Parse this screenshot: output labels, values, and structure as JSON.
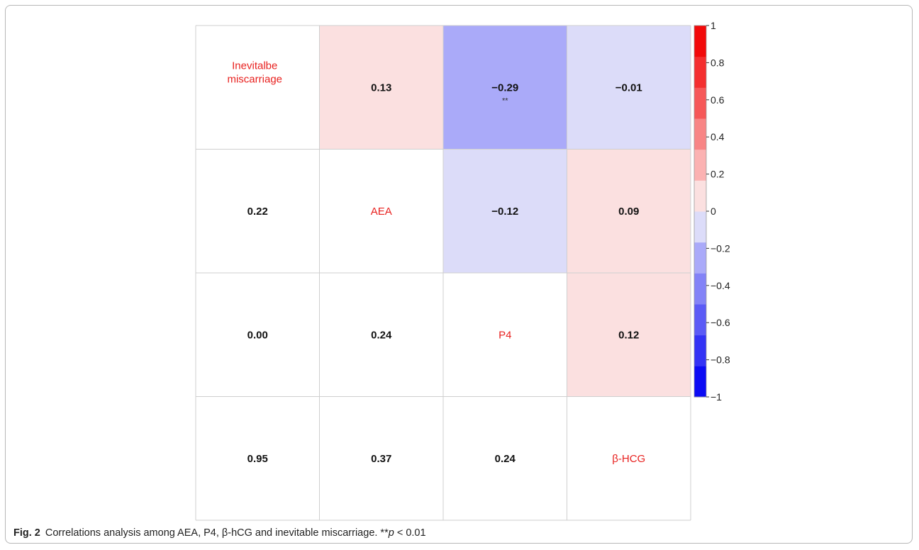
{
  "chart_data": {
    "type": "heatmap",
    "variables": [
      "Inevitalbe miscarriage",
      "AEA",
      "P4",
      "β-HCG"
    ],
    "upper_colored_r": [
      {
        "row": 0,
        "col": 1,
        "value": 0.13,
        "label": "0.13",
        "sig": ""
      },
      {
        "row": 0,
        "col": 2,
        "value": -0.29,
        "label": "−0.29",
        "sig": "**"
      },
      {
        "row": 0,
        "col": 3,
        "value": -0.01,
        "label": "−0.01",
        "sig": ""
      },
      {
        "row": 1,
        "col": 2,
        "value": -0.12,
        "label": "−0.12",
        "sig": ""
      },
      {
        "row": 1,
        "col": 3,
        "value": 0.09,
        "label": "0.09",
        "sig": ""
      },
      {
        "row": 2,
        "col": 3,
        "value": 0.12,
        "label": "0.12",
        "sig": ""
      }
    ],
    "lower_p_values": [
      {
        "row": 1,
        "col": 0,
        "label": "0.22"
      },
      {
        "row": 2,
        "col": 0,
        "label": "0.00"
      },
      {
        "row": 2,
        "col": 1,
        "label": "0.24"
      },
      {
        "row": 3,
        "col": 0,
        "label": "0.95"
      },
      {
        "row": 3,
        "col": 1,
        "label": "0.37"
      },
      {
        "row": 3,
        "col": 2,
        "label": "0.24"
      }
    ],
    "colorbar": {
      "range": [
        -1,
        1
      ],
      "ticks": [
        "1",
        "0.8",
        "0.6",
        "0.4",
        "0.2",
        "0",
        "−0.2",
        "−0.4",
        "−0.6",
        "−0.8",
        "−1"
      ],
      "bins": [
        "#0b0bf4",
        "#3333f5",
        "#5b5bf6",
        "#8383f7",
        "#aaaaf9",
        "#dcdcf9",
        "#fbe0e0",
        "#fbb2b2",
        "#f88585",
        "#f65858",
        "#f42f2f",
        "#f20a0a"
      ]
    },
    "label_color": "#e8211f"
  },
  "caption": {
    "fig_label": "Fig. 2",
    "text_main": "Correlations analysis among AEA, P4, β-hCG and inevitable miscarriage. **",
    "text_p": "p",
    "text_tail": " < 0.01"
  }
}
